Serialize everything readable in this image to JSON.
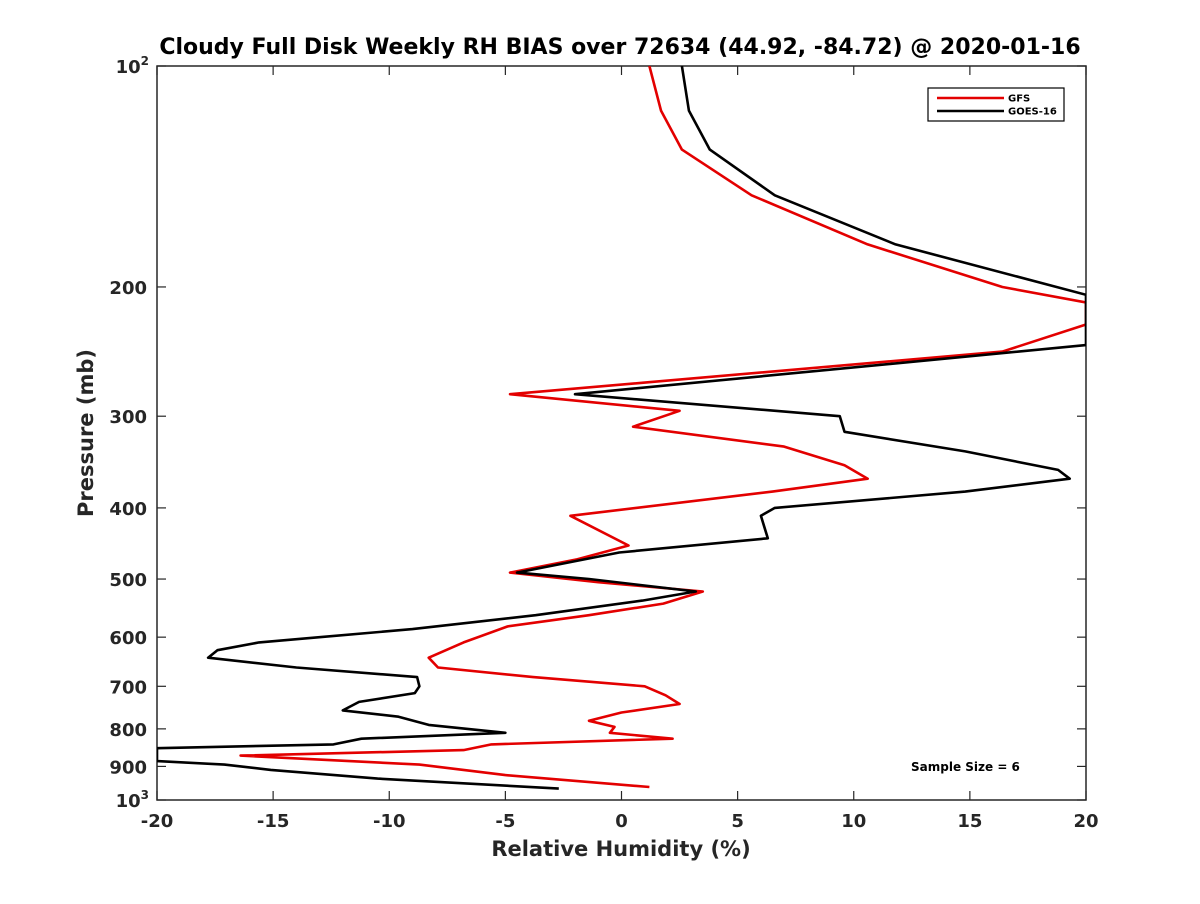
{
  "chart_data": {
    "type": "line",
    "title": "Cloudy Full Disk Weekly RH BIAS over 72634 (44.92, -84.72) @ 2020-01-16",
    "xlabel": "Relative Humidity (%)",
    "ylabel": "Pressure (mb)",
    "xlim": [
      -20,
      20
    ],
    "ylim": [
      100,
      1000
    ],
    "y_scale": "log",
    "y_reversed": true,
    "grid": false,
    "legend_position": "top-right",
    "x_ticks": [
      -20,
      -15,
      -10,
      -5,
      0,
      5,
      10,
      15,
      20
    ],
    "x_tick_labels": [
      "-20",
      "-15",
      "-10",
      "-5",
      "0",
      "5",
      "10",
      "15",
      "20"
    ],
    "y_ticks": [
      {
        "value": 100,
        "base": "10",
        "exp": "2"
      },
      {
        "value": 200,
        "label": "200"
      },
      {
        "value": 300,
        "label": "300"
      },
      {
        "value": 400,
        "label": "400"
      },
      {
        "value": 500,
        "label": "500"
      },
      {
        "value": 600,
        "label": "600"
      },
      {
        "value": 700,
        "label": "700"
      },
      {
        "value": 800,
        "label": "800"
      },
      {
        "value": 900,
        "label": "900"
      },
      {
        "value": 1000,
        "base": "10",
        "exp": "3"
      }
    ],
    "annotation": "Sample Size = 6",
    "series": [
      {
        "name": "GFS",
        "color": "#e30000",
        "points": [
          [
            1.2,
            100
          ],
          [
            1.7,
            115
          ],
          [
            2.6,
            130
          ],
          [
            5.6,
            150
          ],
          [
            10.6,
            175
          ],
          [
            16.4,
            200
          ],
          [
            20,
            210
          ],
          [
            20,
            225
          ],
          [
            16.4,
            245
          ],
          [
            -4.8,
            280
          ],
          [
            2.5,
            295
          ],
          [
            0.5,
            310
          ],
          [
            7.0,
            330
          ],
          [
            9.6,
            350
          ],
          [
            10.6,
            365
          ],
          [
            6.5,
            380
          ],
          [
            -2.2,
            410
          ],
          [
            0.3,
            450
          ],
          [
            -1.9,
            470
          ],
          [
            -4.8,
            490
          ],
          [
            -1.0,
            505
          ],
          [
            3.5,
            520
          ],
          [
            1.8,
            540
          ],
          [
            -1.4,
            560
          ],
          [
            -4.9,
            580
          ],
          [
            -6.8,
            610
          ],
          [
            -8.3,
            640
          ],
          [
            -7.9,
            660
          ],
          [
            -3.8,
            680
          ],
          [
            1.0,
            700
          ],
          [
            1.9,
            720
          ],
          [
            2.5,
            740
          ],
          [
            0.0,
            760
          ],
          [
            -1.4,
            780
          ],
          [
            -0.3,
            795
          ],
          [
            -0.5,
            810
          ],
          [
            2.2,
            825
          ],
          [
            -5.6,
            840
          ],
          [
            -6.8,
            855
          ],
          [
            -16.4,
            870
          ],
          [
            -8.7,
            895
          ],
          [
            -5.0,
            925
          ],
          [
            1.2,
            960
          ]
        ]
      },
      {
        "name": "GOES-16",
        "color": "#000000",
        "points": [
          [
            2.6,
            100
          ],
          [
            2.9,
            115
          ],
          [
            3.8,
            130
          ],
          [
            6.6,
            150
          ],
          [
            11.8,
            175
          ],
          [
            20,
            205
          ],
          [
            20,
            240
          ],
          [
            -2.0,
            280
          ],
          [
            9.4,
            300
          ],
          [
            9.6,
            315
          ],
          [
            14.8,
            335
          ],
          [
            18.8,
            355
          ],
          [
            19.3,
            365
          ],
          [
            14.8,
            380
          ],
          [
            6.6,
            400
          ],
          [
            6.0,
            410
          ],
          [
            6.3,
            440
          ],
          [
            -0.1,
            460
          ],
          [
            -4.5,
            490
          ],
          [
            -1.4,
            500
          ],
          [
            3.2,
            520
          ],
          [
            0.9,
            535
          ],
          [
            -3.7,
            560
          ],
          [
            -9.0,
            585
          ],
          [
            -15.6,
            610
          ],
          [
            -17.4,
            625
          ],
          [
            -17.8,
            640
          ],
          [
            -14.0,
            660
          ],
          [
            -8.8,
            680
          ],
          [
            -8.7,
            700
          ],
          [
            -8.9,
            715
          ],
          [
            -11.3,
            735
          ],
          [
            -12.0,
            755
          ],
          [
            -9.6,
            770
          ],
          [
            -8.3,
            790
          ],
          [
            -5.0,
            810
          ],
          [
            -11.2,
            825
          ],
          [
            -12.4,
            840
          ],
          [
            -20,
            850
          ],
          [
            -20,
            885
          ],
          [
            -17.1,
            895
          ],
          [
            -15.1,
            910
          ],
          [
            -10.5,
            935
          ],
          [
            -2.7,
            965
          ]
        ]
      }
    ]
  }
}
